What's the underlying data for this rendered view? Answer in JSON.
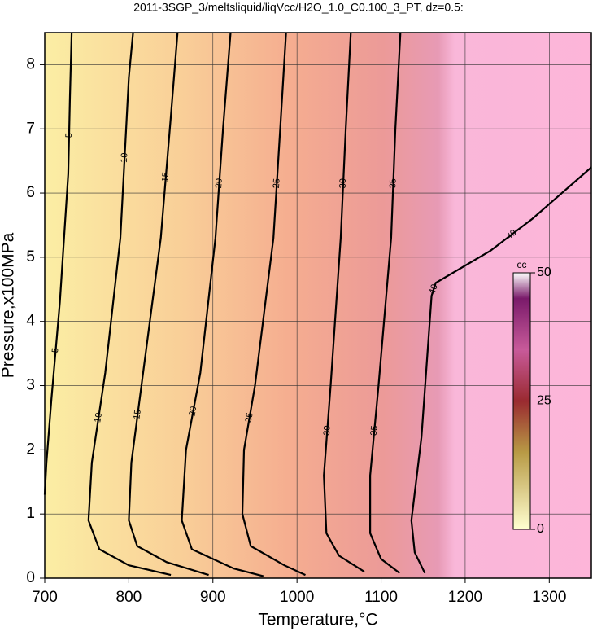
{
  "chart_data": {
    "type": "contour",
    "title": "2011-3SGP_3/meltsliquid/liqVcc/H2O_1.0_C0.100_3_PT, dz=0.5:",
    "x_label": "Temperature,°C",
    "y_label": "Pressure,x100MPa",
    "xlim": [
      700,
      1350
    ],
    "xticks": [
      700,
      800,
      900,
      1000,
      1100,
      1200,
      1300
    ],
    "ylim": [
      0,
      8.5
    ],
    "yticks": [
      0,
      1,
      2,
      3,
      4,
      5,
      6,
      7,
      8
    ],
    "grid": true,
    "contours": [
      {
        "level": 5,
        "T": [
          732,
          730,
          728,
          718,
          708,
          702,
          700
        ],
        "P": [
          8.5,
          7.5,
          6.3,
          4.3,
          2.8,
          1.8,
          1.3
        ]
      },
      {
        "level": 10,
        "T": [
          805,
          800,
          790,
          772,
          756,
          752,
          765,
          800,
          850
        ],
        "P": [
          8.5,
          7.8,
          5.3,
          3.2,
          1.8,
          0.9,
          0.45,
          0.2,
          0.05
        ]
      },
      {
        "level": 15,
        "T": [
          858,
          850,
          838,
          818,
          803,
          800,
          810,
          845,
          895
        ],
        "P": [
          8.5,
          7.2,
          5.3,
          3.3,
          1.8,
          0.9,
          0.5,
          0.25,
          0.05
        ]
      },
      {
        "level": 20,
        "T": [
          921,
          912,
          903,
          885,
          868,
          863,
          875,
          925,
          960
        ],
        "P": [
          8.5,
          7.0,
          5.3,
          3.2,
          2.0,
          0.9,
          0.45,
          0.15,
          0.03
        ]
      },
      {
        "level": 25,
        "T": [
          987,
          980,
          972,
          950,
          937,
          935,
          945,
          985,
          1010
        ],
        "P": [
          8.5,
          7.0,
          5.3,
          3.0,
          2.0,
          1.0,
          0.5,
          0.2,
          0.05
        ]
      },
      {
        "level": 30,
        "T": [
          1064,
          1058,
          1052,
          1040,
          1032,
          1035,
          1050,
          1080
        ],
        "P": [
          8.5,
          7.0,
          5.3,
          3.0,
          1.6,
          0.7,
          0.35,
          0.1
        ]
      },
      {
        "level": 35,
        "T": [
          1123,
          1117,
          1112,
          1097,
          1087,
          1087,
          1100,
          1122
        ],
        "P": [
          8.5,
          7.0,
          5.3,
          3.0,
          1.6,
          0.7,
          0.3,
          0.08
        ]
      },
      {
        "level": 40,
        "T": [
          1350,
          1280,
          1230,
          1165,
          1160,
          1148,
          1136,
          1140,
          1152
        ],
        "P": [
          6.4,
          5.6,
          5.1,
          4.6,
          4.4,
          2.2,
          0.9,
          0.4,
          0.08
        ]
      }
    ],
    "colorbar": {
      "label": "cc",
      "lim": [
        0,
        50
      ],
      "ticks": [
        0,
        25,
        50
      ]
    }
  }
}
